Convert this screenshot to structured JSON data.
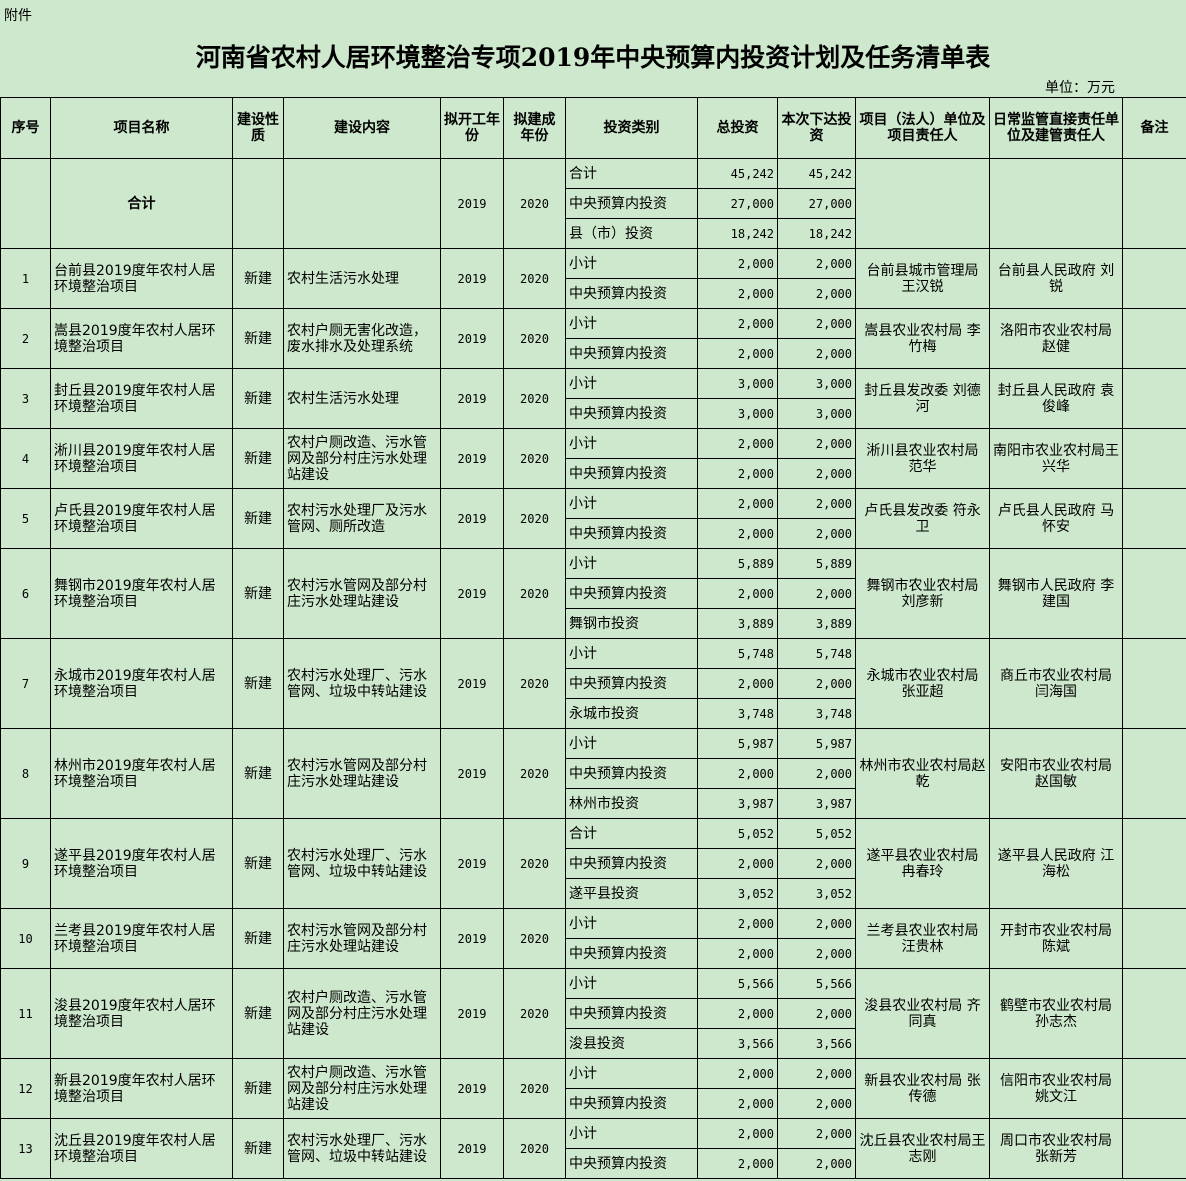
{
  "attachment_label": "附件",
  "title": "河南省农村人居环境整治专项2019年中央预算内投资计划及任务清单表",
  "unit": "单位：万元",
  "headers": [
    "序号",
    "项目名称",
    "建设性质",
    "建设内容",
    "拟开工年份",
    "拟建成年份",
    "投资类别",
    "总投资",
    "本次下达投资",
    "项目（法人）单位及项目责任人",
    "日常监管直接责任单位及建管责任人",
    "备注"
  ],
  "total": {
    "name": "合计",
    "start": "2019",
    "end": "2020",
    "lines": [
      {
        "type": "合计",
        "total": "45,242",
        "issued": "45,242"
      },
      {
        "type": "中央预算内投资",
        "total": "27,000",
        "issued": "27,000"
      },
      {
        "type": "县（市）投资",
        "total": "18,242",
        "issued": "18,242"
      }
    ]
  },
  "projects": [
    {
      "no": "1",
      "name": "台前县2019度年农村人居环境整治项目",
      "nature": "新建",
      "content": "农村生活污水处理",
      "start": "2019",
      "end": "2020",
      "lines": [
        {
          "type": "小计",
          "total": "2,000",
          "issued": "2,000"
        },
        {
          "type": "中央预算内投资",
          "total": "2,000",
          "issued": "2,000"
        }
      ],
      "owner": "台前县城市管理局 王汉锐",
      "supervisor": "台前县人民政府 刘锐",
      "remark": ""
    },
    {
      "no": "2",
      "name": "嵩县2019度年农村人居环境整治项目",
      "nature": "新建",
      "content": "农村户厕无害化改造，废水排水及处理系统",
      "start": "2019",
      "end": "2020",
      "lines": [
        {
          "type": "小计",
          "total": "2,000",
          "issued": "2,000"
        },
        {
          "type": "中央预算内投资",
          "total": "2,000",
          "issued": "2,000"
        }
      ],
      "owner": "嵩县农业农村局 李竹梅",
      "supervisor": "洛阳市农业农村局 赵健",
      "remark": ""
    },
    {
      "no": "3",
      "name": "封丘县2019度年农村人居环境整治项目",
      "nature": "新建",
      "content": "农村生活污水处理",
      "start": "2019",
      "end": "2020",
      "lines": [
        {
          "type": "小计",
          "total": "3,000",
          "issued": "3,000"
        },
        {
          "type": "中央预算内投资",
          "total": "3,000",
          "issued": "3,000"
        }
      ],
      "owner": "封丘县发改委 刘德河",
      "supervisor": "封丘县人民政府 袁俊峰",
      "remark": ""
    },
    {
      "no": "4",
      "name": "淅川县2019度年农村人居环境整治项目",
      "nature": "新建",
      "content": "农村户厕改造、污水管网及部分村庄污水处理站建设",
      "start": "2019",
      "end": "2020",
      "lines": [
        {
          "type": "小计",
          "total": "2,000",
          "issued": "2,000"
        },
        {
          "type": "中央预算内投资",
          "total": "2,000",
          "issued": "2,000"
        }
      ],
      "owner": "淅川县农业农村局 范华",
      "supervisor": "南阳市农业农村局王兴华",
      "remark": ""
    },
    {
      "no": "5",
      "name": "卢氏县2019度年农村人居环境整治项目",
      "nature": "新建",
      "content": "农村污水处理厂及污水管网、厕所改造",
      "start": "2019",
      "end": "2020",
      "lines": [
        {
          "type": "小计",
          "total": "2,000",
          "issued": "2,000"
        },
        {
          "type": "中央预算内投资",
          "total": "2,000",
          "issued": "2,000"
        }
      ],
      "owner": "卢氏县发改委 符永卫",
      "supervisor": "卢氏县人民政府 马怀安",
      "remark": ""
    },
    {
      "no": "6",
      "name": "舞钢市2019度年农村人居环境整治项目",
      "nature": "新建",
      "content": "农村污水管网及部分村庄污水处理站建设",
      "start": "2019",
      "end": "2020",
      "lines": [
        {
          "type": "小计",
          "total": "5,889",
          "issued": "5,889"
        },
        {
          "type": "中央预算内投资",
          "total": "2,000",
          "issued": "2,000"
        },
        {
          "type": "舞钢市投资",
          "total": "3,889",
          "issued": "3,889"
        }
      ],
      "owner": "舞钢市农业农村局 刘彦新",
      "supervisor": "舞钢市人民政府 李建国",
      "remark": ""
    },
    {
      "no": "7",
      "name": "永城市2019度年农村人居环境整治项目",
      "nature": "新建",
      "content": "农村污水处理厂、污水管网、垃圾中转站建设",
      "start": "2019",
      "end": "2020",
      "lines": [
        {
          "type": "小计",
          "total": "5,748",
          "issued": "5,748"
        },
        {
          "type": "中央预算内投资",
          "total": "2,000",
          "issued": "2,000"
        },
        {
          "type": "永城市投资",
          "total": "3,748",
          "issued": "3,748"
        }
      ],
      "owner": "永城市农业农村局 张亚超",
      "supervisor": "商丘市农业农村局 闫海国",
      "remark": ""
    },
    {
      "no": "8",
      "name": "林州市2019度年农村人居环境整治项目",
      "nature": "新建",
      "content": "农村污水管网及部分村庄污水处理站建设",
      "start": "2019",
      "end": "2020",
      "lines": [
        {
          "type": "小计",
          "total": "5,987",
          "issued": "5,987"
        },
        {
          "type": "中央预算内投资",
          "total": "2,000",
          "issued": "2,000"
        },
        {
          "type": "林州市投资",
          "total": "3,987",
          "issued": "3,987"
        }
      ],
      "owner": "林州市农业农村局赵乾",
      "supervisor": "安阳市农业农村局 赵国敏",
      "remark": ""
    },
    {
      "no": "9",
      "name": "遂平县2019度年农村人居环境整治项目",
      "nature": "新建",
      "content": "农村污水处理厂、污水管网、垃圾中转站建设",
      "start": "2019",
      "end": "2020",
      "lines": [
        {
          "type": "合计",
          "total": "5,052",
          "issued": "5,052"
        },
        {
          "type": "中央预算内投资",
          "total": "2,000",
          "issued": "2,000"
        },
        {
          "type": "遂平县投资",
          "total": "3,052",
          "issued": "3,052"
        }
      ],
      "owner": "遂平县农业农村局 冉春玲",
      "supervisor": "遂平县人民政府 江海松",
      "remark": ""
    },
    {
      "no": "10",
      "name": "兰考县2019度年农村人居环境整治项目",
      "nature": "新建",
      "content": "农村污水管网及部分村庄污水处理站建设",
      "start": "2019",
      "end": "2020",
      "lines": [
        {
          "type": "小计",
          "total": "2,000",
          "issued": "2,000"
        },
        {
          "type": "中央预算内投资",
          "total": "2,000",
          "issued": "2,000"
        }
      ],
      "owner": "兰考县农业农村局 汪贵林",
      "supervisor": "开封市农业农村局 陈斌",
      "remark": ""
    },
    {
      "no": "11",
      "name": "浚县2019度年农村人居环境整治项目",
      "nature": "新建",
      "content": "农村户厕改造、污水管网及部分村庄污水处理站建设",
      "start": "2019",
      "end": "2020",
      "lines": [
        {
          "type": "小计",
          "total": "5,566",
          "issued": "5,566"
        },
        {
          "type": "中央预算内投资",
          "total": "2,000",
          "issued": "2,000"
        },
        {
          "type": "浚县投资",
          "total": "3,566",
          "issued": "3,566"
        }
      ],
      "owner": "浚县农业农村局 齐同真",
      "supervisor": "鹤壁市农业农村局 孙志杰",
      "remark": ""
    },
    {
      "no": "12",
      "name": "新县2019度年农村人居环境整治项目",
      "nature": "新建",
      "content": "农村户厕改造、污水管网及部分村庄污水处理站建设",
      "start": "2019",
      "end": "2020",
      "lines": [
        {
          "type": "小计",
          "total": "2,000",
          "issued": "2,000"
        },
        {
          "type": "中央预算内投资",
          "total": "2,000",
          "issued": "2,000"
        }
      ],
      "owner": "新县农业农村局 张传德",
      "supervisor": "信阳市农业农村局 姚文江",
      "remark": ""
    },
    {
      "no": "13",
      "name": "沈丘县2019度年农村人居环境整治项目",
      "nature": "新建",
      "content": "农村污水处理厂、污水管网、垃圾中转站建设",
      "start": "2019",
      "end": "2020",
      "lines": [
        {
          "type": "小计",
          "total": "2,000",
          "issued": "2,000"
        },
        {
          "type": "中央预算内投资",
          "total": "2,000",
          "issued": "2,000"
        }
      ],
      "owner": "沈丘县农业农村局王志刚",
      "supervisor": "周口市农业农村局 张新芳",
      "remark": ""
    }
  ],
  "colors": {
    "background": "#cde8cd",
    "grid": "#000000"
  }
}
